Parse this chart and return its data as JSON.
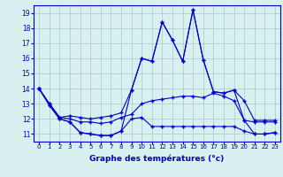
{
  "x": [
    0,
    1,
    2,
    3,
    4,
    5,
    6,
    7,
    8,
    9,
    10,
    11,
    12,
    13,
    14,
    15,
    16,
    17,
    18,
    19,
    20,
    21,
    22,
    23
  ],
  "line1": [
    14,
    12.9,
    12,
    11.8,
    11.1,
    11.0,
    10.9,
    10.9,
    11.2,
    12.0,
    12.1,
    11.5,
    11.5,
    11.5,
    11.5,
    11.5,
    11.5,
    11.5,
    11.5,
    11.5,
    11.2,
    11.0,
    11.0,
    11.1
  ],
  "line2": [
    14,
    12.9,
    12,
    11.8,
    11.1,
    11.0,
    10.9,
    10.9,
    11.2,
    13.9,
    16.0,
    15.8,
    18.4,
    17.2,
    15.8,
    19.2,
    15.9,
    13.8,
    13.7,
    13.9,
    11.9,
    11.0,
    11.0,
    11.1
  ],
  "line3": [
    14,
    13.0,
    12.1,
    12.0,
    11.8,
    11.8,
    11.7,
    11.8,
    12.1,
    12.3,
    13.0,
    13.2,
    13.3,
    13.4,
    13.5,
    13.5,
    13.4,
    13.7,
    13.5,
    13.2,
    11.9,
    11.8,
    11.8,
    11.8
  ],
  "line4": [
    14,
    13.0,
    12.1,
    12.2,
    12.1,
    12.0,
    12.1,
    12.2,
    12.4,
    13.9,
    16.0,
    15.8,
    18.4,
    17.2,
    15.8,
    19.2,
    15.9,
    13.8,
    13.7,
    13.9,
    13.2,
    11.9,
    11.9,
    11.9
  ],
  "line_color": "#0000cc",
  "bg_color": "#d8f0f0",
  "grid_color": "#a8c8c8",
  "ylabel_values": [
    11,
    12,
    13,
    14,
    15,
    16,
    17,
    18,
    19
  ],
  "ylim": [
    10.5,
    19.5
  ],
  "xlim": [
    -0.5,
    23.5
  ],
  "xlabel": "Graphe des températures (°c)",
  "marker": "+"
}
